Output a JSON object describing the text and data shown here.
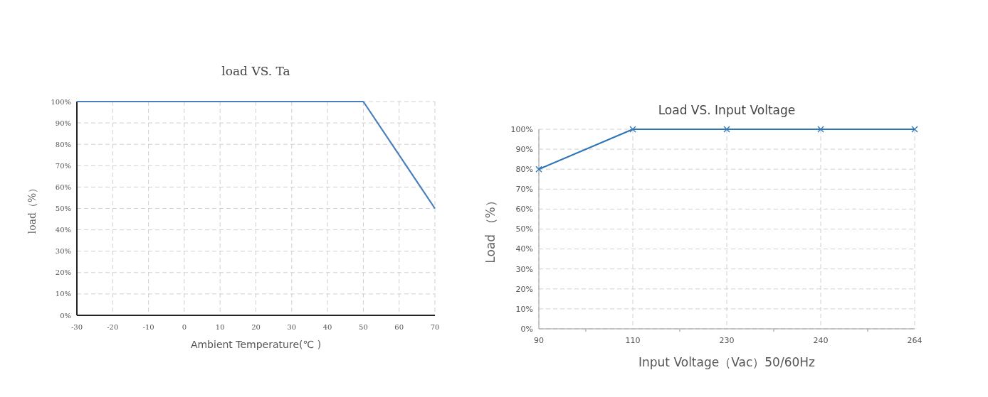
{
  "chart_data": [
    {
      "type": "line",
      "title": "load VS. Ta",
      "xlabel": "Ambient  Temperature(℃ )",
      "ylabel": "load（%）",
      "x": [
        -30,
        50,
        70
      ],
      "series": [
        {
          "color": "#4a7ebb",
          "values": [
            100,
            100,
            50
          ]
        }
      ],
      "xlim": [
        -30,
        70
      ],
      "xticks": [
        -30,
        -20,
        -10,
        0,
        10,
        20,
        30,
        40,
        50,
        60,
        70
      ],
      "ylim": [
        0,
        100
      ],
      "yticks": [
        {
          "value": 0,
          "label": "0%"
        },
        {
          "value": 10,
          "label": "10%"
        },
        {
          "value": 20,
          "label": "20%"
        },
        {
          "value": 30,
          "label": "30%"
        },
        {
          "value": 40,
          "label": "40%"
        },
        {
          "value": 50,
          "label": "50%"
        },
        {
          "value": 60,
          "label": "60%"
        },
        {
          "value": 70,
          "label": "70%"
        },
        {
          "value": 80,
          "label": "80%"
        },
        {
          "value": 90,
          "label": "90%"
        },
        {
          "value": 100,
          "label": "100%"
        }
      ],
      "grid": true
    },
    {
      "type": "line",
      "title": "Load VS. Input Voltage",
      "xlabel": "Input Voltage（Vac）50/60Hz",
      "ylabel": "Load （%）",
      "categories": [
        "90",
        "110",
        "230",
        "240",
        "264"
      ],
      "series": [
        {
          "color": "#2e75b6",
          "values": [
            80,
            100,
            100,
            100,
            100
          ]
        }
      ],
      "ylim": [
        0,
        100
      ],
      "yticks": [
        {
          "value": 0,
          "label": "0%"
        },
        {
          "value": 10,
          "label": "10%"
        },
        {
          "value": 20,
          "label": "20%"
        },
        {
          "value": 30,
          "label": "30%"
        },
        {
          "value": 40,
          "label": "40%"
        },
        {
          "value": 50,
          "label": "50%"
        },
        {
          "value": 60,
          "label": "60%"
        },
        {
          "value": 70,
          "label": "70%"
        },
        {
          "value": 80,
          "label": "80%"
        },
        {
          "value": 90,
          "label": "90%"
        },
        {
          "value": 100,
          "label": "100%"
        }
      ],
      "grid": true,
      "marker": "cross"
    }
  ]
}
